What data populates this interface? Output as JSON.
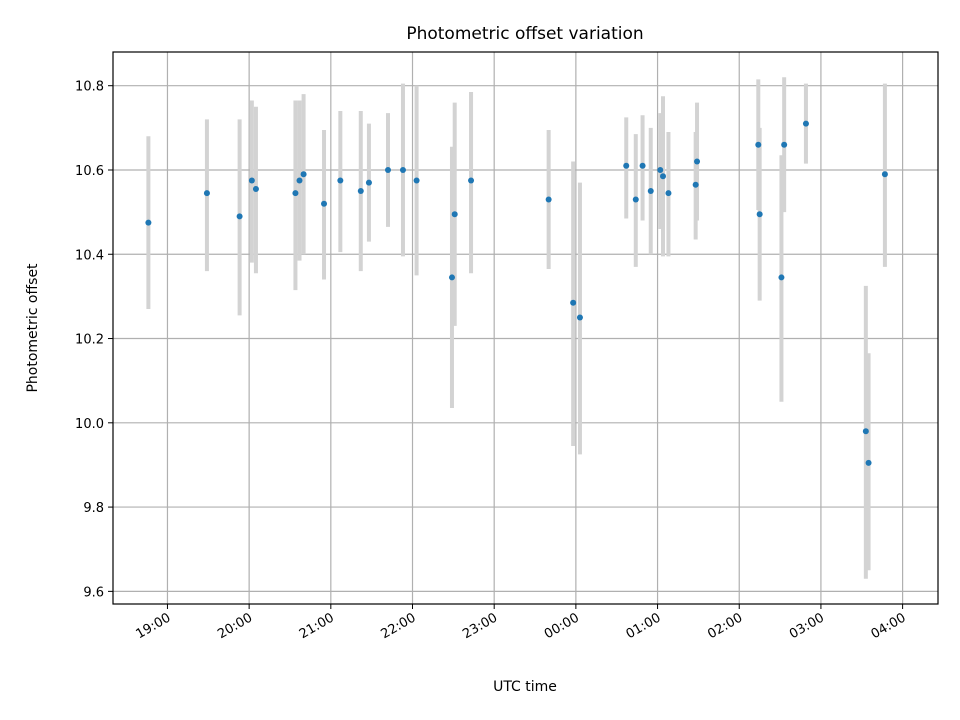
{
  "chart_data": {
    "type": "scatter",
    "title": "Photometric offset variation",
    "xlabel": "UTC time",
    "ylabel": "Photometric offset",
    "x_ticks": [
      "19:00",
      "20:00",
      "21:00",
      "22:00",
      "23:00",
      "00:00",
      "01:00",
      "02:00",
      "03:00",
      "04:00"
    ],
    "xlim": [
      "18:20",
      "04:26"
    ],
    "ylim": [
      9.57,
      10.88
    ],
    "y_ticks": [
      9.6,
      9.8,
      10.0,
      10.2,
      10.4,
      10.6,
      10.8
    ],
    "grid": true,
    "colors": {
      "point": "#1f77b4",
      "errorbar": "#d3d3d3",
      "grid": "#b0b0b0"
    },
    "series": [
      {
        "points": [
          {
            "t": "18:46",
            "y": 10.475,
            "lo": 10.27,
            "hi": 10.68
          },
          {
            "t": "19:29",
            "y": 10.545,
            "lo": 10.36,
            "hi": 10.72
          },
          {
            "t": "19:53",
            "y": 10.49,
            "lo": 10.255,
            "hi": 10.72
          },
          {
            "t": "20:02",
            "y": 10.575,
            "lo": 10.38,
            "hi": 10.765
          },
          {
            "t": "20:05",
            "y": 10.555,
            "lo": 10.355,
            "hi": 10.75
          },
          {
            "t": "20:34",
            "y": 10.545,
            "lo": 10.315,
            "hi": 10.765
          },
          {
            "t": "20:37",
            "y": 10.575,
            "lo": 10.385,
            "hi": 10.765
          },
          {
            "t": "20:40",
            "y": 10.59,
            "lo": 10.4,
            "hi": 10.78
          },
          {
            "t": "20:55",
            "y": 10.52,
            "lo": 10.34,
            "hi": 10.695
          },
          {
            "t": "21:07",
            "y": 10.575,
            "lo": 10.405,
            "hi": 10.74
          },
          {
            "t": "21:22",
            "y": 10.55,
            "lo": 10.36,
            "hi": 10.74
          },
          {
            "t": "21:28",
            "y": 10.57,
            "lo": 10.43,
            "hi": 10.71
          },
          {
            "t": "21:42",
            "y": 10.6,
            "lo": 10.465,
            "hi": 10.735
          },
          {
            "t": "21:53",
            "y": 10.6,
            "lo": 10.395,
            "hi": 10.805
          },
          {
            "t": "22:03",
            "y": 10.575,
            "lo": 10.35,
            "hi": 10.8
          },
          {
            "t": "22:29",
            "y": 10.345,
            "lo": 10.035,
            "hi": 10.655
          },
          {
            "t": "22:31",
            "y": 10.495,
            "lo": 10.23,
            "hi": 10.76
          },
          {
            "t": "22:43",
            "y": 10.575,
            "lo": 10.355,
            "hi": 10.785
          },
          {
            "t": "23:40",
            "y": 10.53,
            "lo": 10.365,
            "hi": 10.695
          },
          {
            "t": "23:58",
            "y": 10.285,
            "lo": 9.945,
            "hi": 10.62
          },
          {
            "t": "00:03",
            "y": 10.25,
            "lo": 9.925,
            "hi": 10.57
          },
          {
            "t": "00:37",
            "y": 10.61,
            "lo": 10.485,
            "hi": 10.725
          },
          {
            "t": "00:44",
            "y": 10.53,
            "lo": 10.37,
            "hi": 10.685
          },
          {
            "t": "00:49",
            "y": 10.61,
            "lo": 10.48,
            "hi": 10.73
          },
          {
            "t": "00:55",
            "y": 10.55,
            "lo": 10.4,
            "hi": 10.7
          },
          {
            "t": "01:02",
            "y": 10.6,
            "lo": 10.46,
            "hi": 10.735
          },
          {
            "t": "01:04",
            "y": 10.585,
            "lo": 10.395,
            "hi": 10.775
          },
          {
            "t": "01:08",
            "y": 10.545,
            "lo": 10.395,
            "hi": 10.69
          },
          {
            "t": "01:28",
            "y": 10.565,
            "lo": 10.435,
            "hi": 10.69
          },
          {
            "t": "01:29",
            "y": 10.62,
            "lo": 10.48,
            "hi": 10.76
          },
          {
            "t": "02:14",
            "y": 10.66,
            "lo": 10.505,
            "hi": 10.815
          },
          {
            "t": "02:15",
            "y": 10.495,
            "lo": 10.29,
            "hi": 10.7
          },
          {
            "t": "02:31",
            "y": 10.345,
            "lo": 10.05,
            "hi": 10.635
          },
          {
            "t": "02:33",
            "y": 10.66,
            "lo": 10.5,
            "hi": 10.82
          },
          {
            "t": "02:49",
            "y": 10.71,
            "lo": 10.615,
            "hi": 10.805
          },
          {
            "t": "03:33",
            "y": 9.98,
            "lo": 9.63,
            "hi": 10.325
          },
          {
            "t": "03:35",
            "y": 9.905,
            "lo": 9.65,
            "hi": 10.165
          },
          {
            "t": "03:47",
            "y": 10.59,
            "lo": 10.37,
            "hi": 10.805
          }
        ]
      }
    ]
  }
}
